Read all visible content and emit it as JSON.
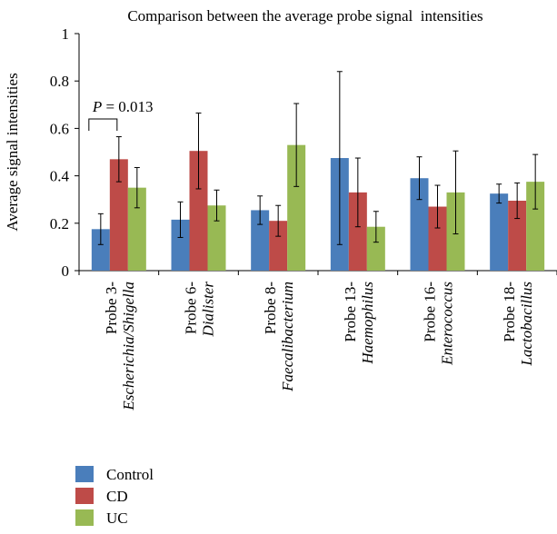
{
  "chart_data": {
    "type": "bar",
    "title": "Comparison between the average probe signal  intensities",
    "xlabel": "",
    "ylabel": "Average signal intensities",
    "ylim": [
      0,
      1
    ],
    "yticks": [
      0,
      0.2,
      0.4,
      0.6,
      0.8,
      1
    ],
    "ytick_labels": [
      "0",
      "0.2",
      "0.4",
      "0.6",
      "0.8",
      "1"
    ],
    "categories": [
      {
        "line1": "Probe 3-",
        "line2": "Escherichia/Shigella"
      },
      {
        "line1": "Probe 6-",
        "line2": "Dialister"
      },
      {
        "line1": "Probe 8-",
        "line2": "Faecalibacterium"
      },
      {
        "line1": "Probe 13-",
        "line2": "Haemophilus"
      },
      {
        "line1": "Probe 16-",
        "line2": "Enterococcus"
      },
      {
        "line1": "Probe 18-",
        "line2": "Lactobacillus"
      }
    ],
    "series": [
      {
        "name": "Control",
        "color": "#4a7ebb",
        "values": [
          0.175,
          0.215,
          0.255,
          0.475,
          0.39,
          0.325
        ],
        "errors": [
          0.065,
          0.075,
          0.06,
          0.365,
          0.09,
          0.04
        ]
      },
      {
        "name": "CD",
        "color": "#be4b48",
        "values": [
          0.47,
          0.505,
          0.21,
          0.33,
          0.27,
          0.295
        ],
        "errors": [
          0.095,
          0.16,
          0.065,
          0.145,
          0.09,
          0.075
        ]
      },
      {
        "name": "UC",
        "color": "#98b954",
        "values": [
          0.35,
          0.275,
          0.53,
          0.185,
          0.33,
          0.375
        ],
        "errors": [
          0.085,
          0.065,
          0.175,
          0.065,
          0.175,
          0.115
        ]
      }
    ],
    "annotation": {
      "p_label": "P",
      "p_value": " = 0.013",
      "between": [
        "Control",
        "CD"
      ],
      "category_index": 0
    },
    "legend_position": "bottom-left",
    "grid": false
  }
}
